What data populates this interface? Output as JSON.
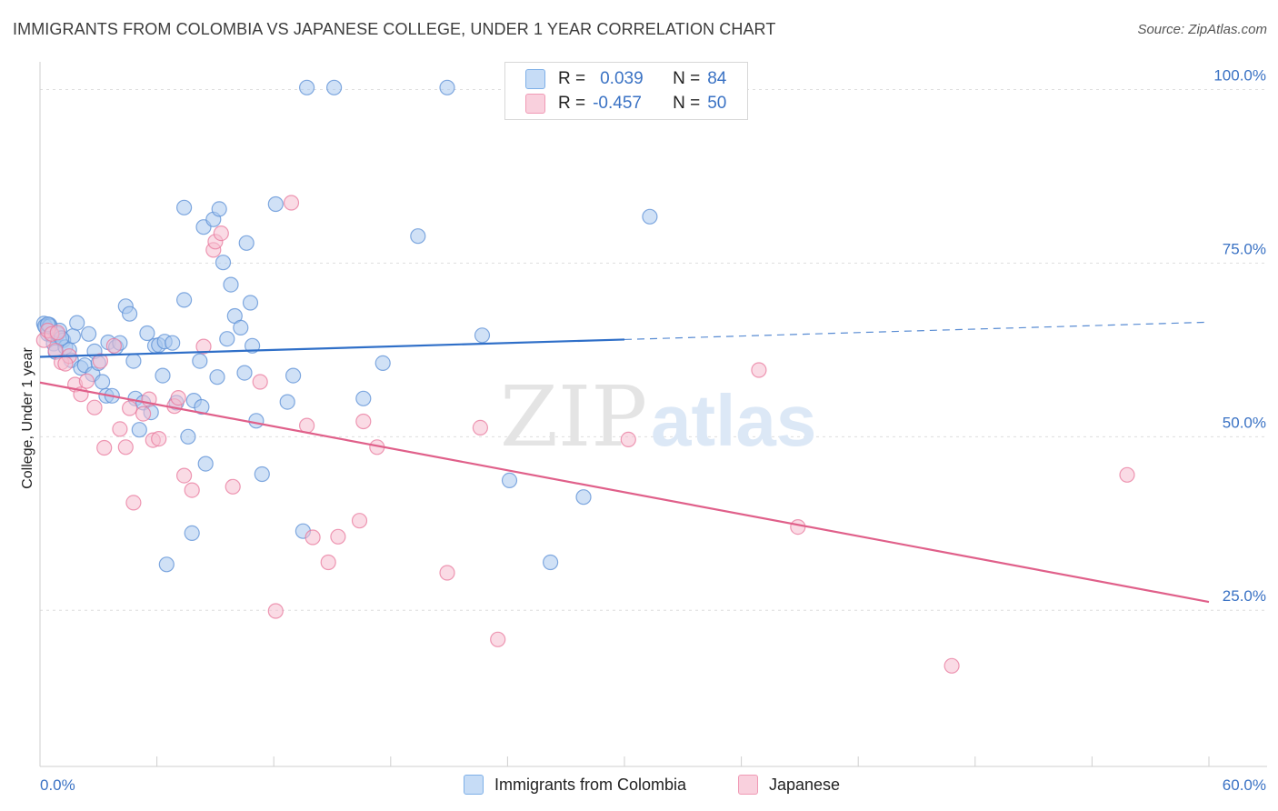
{
  "title": "IMMIGRANTS FROM COLOMBIA VS JAPANESE COLLEGE, UNDER 1 YEAR CORRELATION CHART",
  "source": "Source: ZipAtlas.com",
  "watermark": {
    "zip": "ZIP",
    "atlas": "atlas"
  },
  "legend": {
    "rows": [
      {
        "r_label": "R =",
        "r_value": "0.039",
        "n_label": "N =",
        "n_value": "84",
        "color": "#7fb0e8",
        "fill": "#c6dcf6"
      },
      {
        "r_label": "R =",
        "r_value": "-0.457",
        "n_label": "N =",
        "n_value": "50",
        "color": "#f09ab5",
        "fill": "#f9d0dd"
      }
    ]
  },
  "bottom_legend": [
    "Immigrants from Colombia",
    "Japanese"
  ],
  "chart_data": {
    "type": "scatter",
    "title": "IMMIGRANTS FROM COLOMBIA VS JAPANESE COLLEGE, UNDER 1 YEAR CORRELATION CHART",
    "ylabel": "College, Under 1 year",
    "xlabel": "",
    "xlim": [
      0,
      60
    ],
    "ylim": [
      2.5,
      104
    ],
    "x_ticks": [
      "0.0%",
      "60.0%"
    ],
    "y_ticks": [
      {
        "value": 25,
        "label": "25.0%"
      },
      {
        "value": 50,
        "label": "50.0%"
      },
      {
        "value": 75,
        "label": "75.0%"
      },
      {
        "value": 100,
        "label": "100.0%"
      }
    ],
    "grid": true,
    "legend_position": "top-center",
    "series": [
      {
        "name": "Immigrants from Colombia",
        "color": "#5b8fd6",
        "fill": "#a9c8ee",
        "trend": {
          "x0": 0,
          "y0": 61.5,
          "x1": 30,
          "y1": 64,
          "dashed_to_x": 60,
          "dashed_to_y": 66.5
        },
        "points": [
          [
            0.2,
            66.3
          ],
          [
            0.3,
            65.8
          ],
          [
            0.4,
            64.8
          ],
          [
            0.5,
            66.1
          ],
          [
            0.6,
            64.6
          ],
          [
            0.7,
            63.4
          ],
          [
            0.8,
            62.2
          ],
          [
            0.9,
            64.8
          ],
          [
            1.0,
            65.3
          ],
          [
            1.2,
            63.9
          ],
          [
            1.3,
            62.9
          ],
          [
            1.5,
            62.5
          ],
          [
            1.6,
            61.0
          ],
          [
            1.7,
            64.5
          ],
          [
            1.9,
            66.4
          ],
          [
            2.1,
            59.9
          ],
          [
            2.3,
            60.3
          ],
          [
            2.5,
            64.8
          ],
          [
            2.7,
            59.0
          ],
          [
            2.8,
            62.3
          ],
          [
            3.0,
            60.6
          ],
          [
            3.2,
            57.9
          ],
          [
            3.4,
            55.9
          ],
          [
            3.5,
            63.6
          ],
          [
            3.7,
            55.9
          ],
          [
            3.9,
            62.9
          ],
          [
            4.1,
            63.5
          ],
          [
            4.4,
            68.8
          ],
          [
            4.6,
            67.7
          ],
          [
            4.8,
            60.9
          ],
          [
            4.9,
            55.5
          ],
          [
            5.1,
            51.0
          ],
          [
            5.3,
            54.9
          ],
          [
            5.5,
            64.9
          ],
          [
            5.7,
            53.5
          ],
          [
            5.9,
            63.1
          ],
          [
            6.1,
            63.2
          ],
          [
            6.3,
            58.8
          ],
          [
            6.4,
            63.7
          ],
          [
            6.5,
            31.6
          ],
          [
            6.8,
            63.5
          ],
          [
            7.0,
            54.9
          ],
          [
            7.4,
            83.0
          ],
          [
            7.4,
            69.7
          ],
          [
            7.6,
            50.0
          ],
          [
            7.8,
            36.1
          ],
          [
            7.9,
            55.2
          ],
          [
            8.2,
            60.9
          ],
          [
            8.3,
            54.3
          ],
          [
            8.4,
            80.2
          ],
          [
            8.5,
            46.1
          ],
          [
            8.9,
            81.3
          ],
          [
            9.1,
            58.6
          ],
          [
            9.2,
            82.8
          ],
          [
            9.4,
            75.1
          ],
          [
            9.6,
            64.1
          ],
          [
            9.8,
            71.9
          ],
          [
            10.0,
            67.4
          ],
          [
            10.3,
            65.7
          ],
          [
            10.5,
            59.2
          ],
          [
            10.6,
            77.9
          ],
          [
            10.8,
            69.3
          ],
          [
            10.9,
            63.1
          ],
          [
            11.1,
            52.3
          ],
          [
            11.4,
            44.6
          ],
          [
            12.1,
            83.5
          ],
          [
            12.7,
            55.0
          ],
          [
            13.0,
            58.8
          ],
          [
            13.5,
            36.4
          ],
          [
            13.7,
            100.3
          ],
          [
            15.1,
            100.3
          ],
          [
            16.6,
            55.5
          ],
          [
            17.6,
            60.6
          ],
          [
            19.4,
            78.9
          ],
          [
            20.9,
            100.3
          ],
          [
            22.7,
            64.6
          ],
          [
            24.1,
            43.7
          ],
          [
            26.2,
            31.9
          ],
          [
            27.9,
            41.3
          ],
          [
            31.3,
            81.7
          ],
          [
            0.25,
            65.9
          ],
          [
            0.5,
            65.9
          ],
          [
            0.4,
            66.2
          ],
          [
            1.1,
            64.2
          ]
        ]
      },
      {
        "name": "Japanese",
        "color": "#e8789c",
        "fill": "#f6bdcf",
        "trend": {
          "x0": 0,
          "y0": 57.8,
          "x1": 60,
          "y1": 26.2
        },
        "points": [
          [
            0.2,
            63.9
          ],
          [
            0.4,
            65.3
          ],
          [
            0.6,
            64.8
          ],
          [
            0.8,
            62.4
          ],
          [
            1.1,
            60.7
          ],
          [
            1.5,
            61.6
          ],
          [
            1.8,
            57.5
          ],
          [
            2.1,
            56.1
          ],
          [
            2.4,
            58.0
          ],
          [
            2.8,
            54.2
          ],
          [
            3.1,
            60.9
          ],
          [
            3.3,
            48.4
          ],
          [
            3.8,
            63.1
          ],
          [
            4.1,
            51.1
          ],
          [
            4.4,
            48.5
          ],
          [
            4.6,
            54.1
          ],
          [
            4.8,
            40.5
          ],
          [
            5.3,
            53.3
          ],
          [
            5.6,
            55.4
          ],
          [
            5.8,
            49.5
          ],
          [
            6.1,
            49.7
          ],
          [
            6.9,
            54.4
          ],
          [
            7.1,
            55.6
          ],
          [
            7.4,
            44.4
          ],
          [
            7.8,
            42.3
          ],
          [
            8.4,
            63.0
          ],
          [
            8.9,
            76.9
          ],
          [
            9.0,
            78.1
          ],
          [
            9.3,
            79.3
          ],
          [
            9.9,
            42.8
          ],
          [
            11.3,
            57.9
          ],
          [
            12.1,
            24.9
          ],
          [
            12.9,
            83.7
          ],
          [
            13.7,
            51.6
          ],
          [
            14.0,
            35.5
          ],
          [
            14.8,
            31.9
          ],
          [
            15.3,
            35.6
          ],
          [
            16.4,
            37.9
          ],
          [
            16.6,
            52.2
          ],
          [
            17.3,
            48.5
          ],
          [
            20.9,
            30.4
          ],
          [
            22.6,
            51.3
          ],
          [
            23.5,
            20.8
          ],
          [
            30.2,
            49.6
          ],
          [
            36.9,
            59.6
          ],
          [
            38.9,
            37.0
          ],
          [
            46.8,
            17.0
          ],
          [
            55.8,
            44.5
          ],
          [
            0.9,
            65.0
          ],
          [
            1.3,
            60.5
          ]
        ]
      }
    ]
  }
}
